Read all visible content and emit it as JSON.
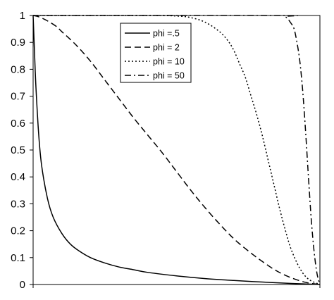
{
  "chart_data": {
    "type": "line",
    "title": "",
    "xlabel": "",
    "ylabel": "",
    "xlim": [
      0,
      1
    ],
    "ylim": [
      0,
      1
    ],
    "y_ticks": [
      "0",
      "0.1",
      "0.2",
      "0.3",
      "0.4",
      "0.5",
      "0.6",
      "0.7",
      "0.8",
      "0.9",
      "1"
    ],
    "grid": false,
    "legend_position": "top-center",
    "series": [
      {
        "name": "phi =.5",
        "style": "solid",
        "x": [
          0,
          0.005,
          0.01,
          0.02,
          0.03,
          0.05,
          0.07,
          0.1,
          0.13,
          0.16,
          0.2,
          0.25,
          0.3,
          0.35,
          0.4,
          0.5,
          0.6,
          0.7,
          0.8,
          0.9,
          0.95,
          1
        ],
        "y": [
          1,
          0.86,
          0.73,
          0.55,
          0.44,
          0.32,
          0.25,
          0.19,
          0.15,
          0.125,
          0.1,
          0.08,
          0.065,
          0.055,
          0.045,
          0.032,
          0.022,
          0.015,
          0.009,
          0.004,
          0.002,
          0
        ]
      },
      {
        "name": "phi = 2",
        "style": "dashed",
        "x": [
          0,
          0.02,
          0.05,
          0.08,
          0.1,
          0.15,
          0.2,
          0.25,
          0.3,
          0.35,
          0.4,
          0.45,
          0.5,
          0.55,
          0.6,
          0.65,
          0.7,
          0.75,
          0.8,
          0.85,
          0.9,
          0.95,
          1
        ],
        "y": [
          1,
          0.995,
          0.98,
          0.96,
          0.94,
          0.89,
          0.83,
          0.76,
          0.69,
          0.62,
          0.555,
          0.49,
          0.42,
          0.35,
          0.285,
          0.225,
          0.17,
          0.125,
          0.085,
          0.05,
          0.025,
          0.008,
          0
        ]
      },
      {
        "name": "phi = 10",
        "style": "dotted",
        "x": [
          0,
          0.4,
          0.5,
          0.55,
          0.6,
          0.65,
          0.68,
          0.7,
          0.72,
          0.74,
          0.76,
          0.78,
          0.8,
          0.82,
          0.84,
          0.86,
          0.88,
          0.9,
          0.93,
          0.96,
          1
        ],
        "y": [
          1,
          1,
          0.998,
          0.992,
          0.975,
          0.94,
          0.905,
          0.87,
          0.82,
          0.77,
          0.7,
          0.63,
          0.55,
          0.46,
          0.37,
          0.28,
          0.2,
          0.13,
          0.06,
          0.02,
          0
        ]
      },
      {
        "name": "phi = 50",
        "style": "dashdot",
        "x": [
          0,
          0.85,
          0.88,
          0.9,
          0.91,
          0.92,
          0.93,
          0.94,
          0.95,
          0.96,
          0.97,
          0.98,
          0.99,
          1
        ],
        "y": [
          1,
          1,
          0.995,
          0.97,
          0.95,
          0.9,
          0.83,
          0.72,
          0.57,
          0.4,
          0.24,
          0.12,
          0.04,
          0
        ]
      }
    ]
  }
}
